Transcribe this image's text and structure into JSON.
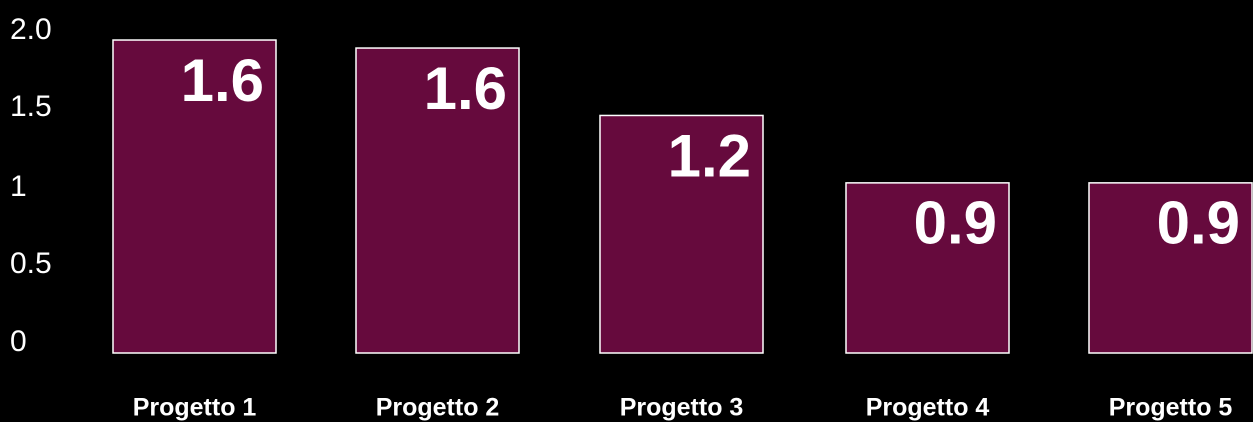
{
  "chart_data": {
    "type": "bar",
    "categories": [
      "Progetto 1",
      "Progetto 2",
      "Progetto 3",
      "Progetto 4",
      "Progetto 5"
    ],
    "values": [
      1.6,
      1.6,
      1.2,
      0.9,
      0.9
    ],
    "bar_value_heights": [
      1.95,
      1.9,
      1.48,
      1.06,
      1.06
    ],
    "data_labels": [
      "1.6",
      "1.6",
      "1.2",
      "0.9",
      "0.9"
    ],
    "y_ticks": [
      "0",
      "0.5",
      "1",
      "1.5",
      "2.0"
    ],
    "y_tick_values": [
      0,
      0.5,
      1,
      1.5,
      2.0
    ],
    "ylim": [
      0,
      2.0
    ],
    "title": "",
    "xlabel": "",
    "ylabel": "",
    "grid": false,
    "legend": "none",
    "colors": {
      "background": "#000000",
      "bar_fill": "#660a3d",
      "bar_stroke": "#ffffff",
      "text": "#ffffff"
    }
  }
}
